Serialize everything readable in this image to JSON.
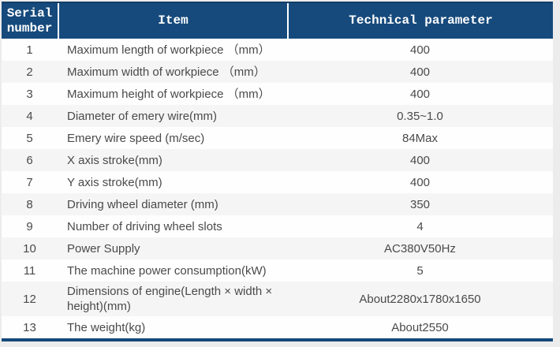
{
  "table": {
    "headers": [
      {
        "label": "Serial number"
      },
      {
        "label": "Item"
      },
      {
        "label": "Technical parameter"
      }
    ],
    "rows": [
      {
        "serial": "1",
        "item": "Maximum length of workpiece （mm）",
        "value": "400"
      },
      {
        "serial": "2",
        "item": "Maximum width of workpiece （mm）",
        "value": "400"
      },
      {
        "serial": "3",
        "item": "Maximum height of workpiece （mm）",
        "value": "400"
      },
      {
        "serial": "4",
        "item": "Diameter of emery wire(mm)",
        "value": "0.35~1.0"
      },
      {
        "serial": "5",
        "item": "Emery wire speed (m/sec)",
        "value": "84Max"
      },
      {
        "serial": "6",
        "item": "X axis stroke(mm)",
        "value": "400"
      },
      {
        "serial": "7",
        "item": "Y axis stroke(mm)",
        "value": "400"
      },
      {
        "serial": "8",
        "item": "Driving wheel diameter (mm)",
        "value": "350"
      },
      {
        "serial": "9",
        "item": "Number of driving wheel slots",
        "value": "4"
      },
      {
        "serial": "10",
        "item": "Power Supply",
        "value": "AC380V50Hz"
      },
      {
        "serial": "11",
        "item": "The machine power consumption(kW)",
        "value": "5"
      },
      {
        "serial": "12",
        "item": "Dimensions of engine(Length × width × height)(mm)",
        "value": "About2280x1780x1650"
      },
      {
        "serial": "13",
        "item": "The weight(kg)",
        "value": "About2550"
      }
    ]
  },
  "colors": {
    "header_background": "#164a7c",
    "header_text": "#ffffff",
    "stripe_row": "#f5f5f6",
    "plain_row": "#fefefe",
    "bottom_border": "#15487a",
    "body_text": "#4a4a4a",
    "page_background": "#ececec"
  }
}
